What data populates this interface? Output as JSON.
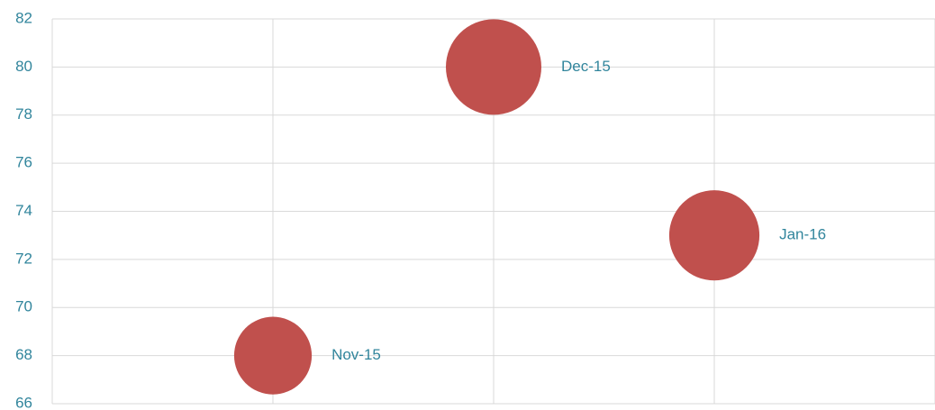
{
  "chart_data": {
    "type": "bubble",
    "x": [
      1,
      2,
      3
    ],
    "series": [
      {
        "color": "#c0504d",
        "values": [
          68,
          80,
          73
        ],
        "sizes": [
          74,
          112,
          100
        ],
        "labels": [
          "Nov-15",
          "Dec-15",
          "Jan-16"
        ]
      }
    ],
    "xlim": [
      0,
      4
    ],
    "xticks": [
      0,
      1,
      2,
      3,
      4
    ],
    "ylim": [
      66,
      82
    ],
    "yticks": [
      66,
      68,
      70,
      72,
      74,
      76,
      78,
      80,
      82
    ],
    "grid": true
  }
}
